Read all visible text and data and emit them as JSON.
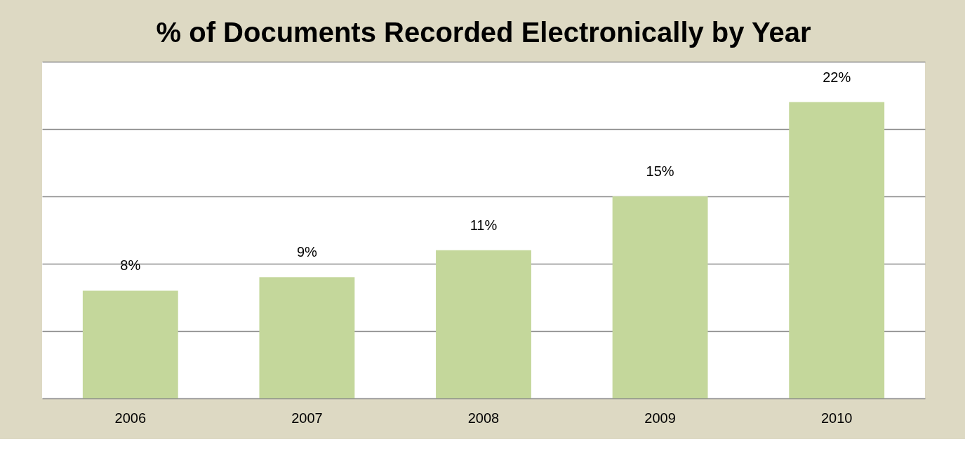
{
  "chart_data": {
    "type": "bar",
    "title": "% of Documents Recorded Electronically by Year",
    "categories": [
      "2006",
      "2007",
      "2008",
      "2009",
      "2010"
    ],
    "values": [
      8,
      9,
      11,
      15,
      22
    ],
    "value_labels": [
      "8%",
      "9%",
      "11%",
      "15%",
      "22%"
    ],
    "color": "#c4d79b",
    "ylim": [
      0,
      25
    ],
    "yticks": [
      {
        "value": 0,
        "label": null
      },
      {
        "value": 5,
        "label": null
      },
      {
        "value": 10,
        "label": null
      },
      {
        "value": 15,
        "label": null
      },
      {
        "value": 20,
        "label": null
      },
      {
        "value": 25,
        "label": null
      }
    ],
    "tick_labels": "x",
    "grid": "y"
  }
}
